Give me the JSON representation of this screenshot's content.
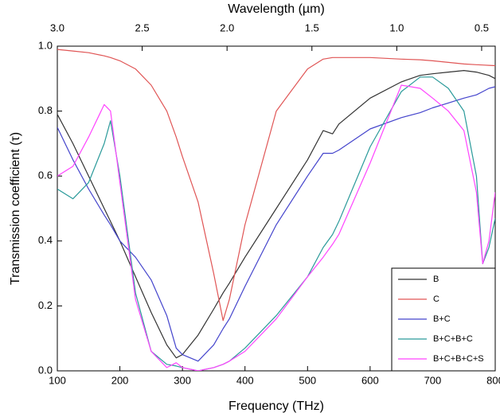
{
  "chart_data": {
    "type": "line",
    "xlabel": "Frequency (THz)",
    "ylabel": "Transmission coefficient (τ)",
    "x2label": "Wavelength (µm)",
    "x": [
      100,
      125,
      150,
      175,
      185,
      200,
      225,
      250,
      275,
      290,
      300,
      325,
      350,
      365,
      375,
      400,
      450,
      500,
      525,
      540,
      550,
      600,
      650,
      680,
      700,
      725,
      750,
      770,
      780,
      790,
      800
    ],
    "series": [
      {
        "name": "B",
        "color": "#333333",
        "values": [
          0.79,
          0.7,
          0.6,
          0.5,
          0.46,
          0.4,
          0.29,
          0.18,
          0.08,
          0.04,
          0.05,
          0.11,
          0.19,
          0.24,
          0.27,
          0.35,
          0.5,
          0.65,
          0.74,
          0.73,
          0.76,
          0.84,
          0.89,
          0.91,
          0.915,
          0.92,
          0.925,
          0.92,
          0.915,
          0.91,
          0.9
        ]
      },
      {
        "name": "C",
        "color": "#e05555",
        "values": [
          0.99,
          0.985,
          0.98,
          0.97,
          0.965,
          0.955,
          0.93,
          0.88,
          0.8,
          0.72,
          0.66,
          0.52,
          0.3,
          0.155,
          0.22,
          0.45,
          0.8,
          0.93,
          0.96,
          0.965,
          0.965,
          0.965,
          0.96,
          0.958,
          0.955,
          0.95,
          0.945,
          0.943,
          0.942,
          0.941,
          0.94
        ]
      },
      {
        "name": "B+C",
        "color": "#4444cc",
        "values": [
          0.75,
          0.65,
          0.56,
          0.48,
          0.45,
          0.4,
          0.35,
          0.28,
          0.17,
          0.07,
          0.05,
          0.03,
          0.08,
          0.13,
          0.16,
          0.26,
          0.45,
          0.6,
          0.67,
          0.67,
          0.68,
          0.745,
          0.78,
          0.795,
          0.81,
          0.825,
          0.84,
          0.85,
          0.86,
          0.87,
          0.875
        ]
      },
      {
        "name": "B+C+B+C",
        "color": "#2a9a9a",
        "values": [
          0.56,
          0.53,
          0.58,
          0.7,
          0.77,
          0.6,
          0.24,
          0.06,
          0.02,
          0.015,
          0.01,
          0.0,
          0.01,
          0.02,
          0.03,
          0.07,
          0.17,
          0.29,
          0.38,
          0.42,
          0.46,
          0.69,
          0.86,
          0.905,
          0.905,
          0.87,
          0.8,
          0.6,
          0.33,
          0.38,
          0.47
        ]
      },
      {
        "name": "B+C+B+C+S",
        "color": "#ff44ff",
        "values": [
          0.6,
          0.63,
          0.72,
          0.82,
          0.8,
          0.58,
          0.22,
          0.06,
          0.01,
          0.025,
          0.01,
          0.0,
          0.01,
          0.02,
          0.03,
          0.06,
          0.16,
          0.29,
          0.35,
          0.39,
          0.42,
          0.64,
          0.88,
          0.87,
          0.84,
          0.8,
          0.74,
          0.55,
          0.33,
          0.4,
          0.55
        ]
      }
    ],
    "xlim": [
      100,
      800
    ],
    "xticks": [
      100,
      200,
      300,
      400,
      500,
      600,
      700,
      800
    ],
    "ylim": [
      0,
      1
    ],
    "yticks": [
      {
        "value": 0,
        "label": "0.0"
      },
      0.2,
      0.4,
      0.6,
      0.8,
      {
        "value": 1,
        "label": "1.0"
      }
    ],
    "x2lim": [
      3.0,
      0.42
    ],
    "x2ticks": [
      {
        "value": 3,
        "label": "3.0"
      },
      2.5,
      {
        "value": 2,
        "label": "2.0"
      },
      1.5,
      {
        "value": 1,
        "label": "1.0"
      },
      0.5
    ],
    "legend": "lower right"
  }
}
